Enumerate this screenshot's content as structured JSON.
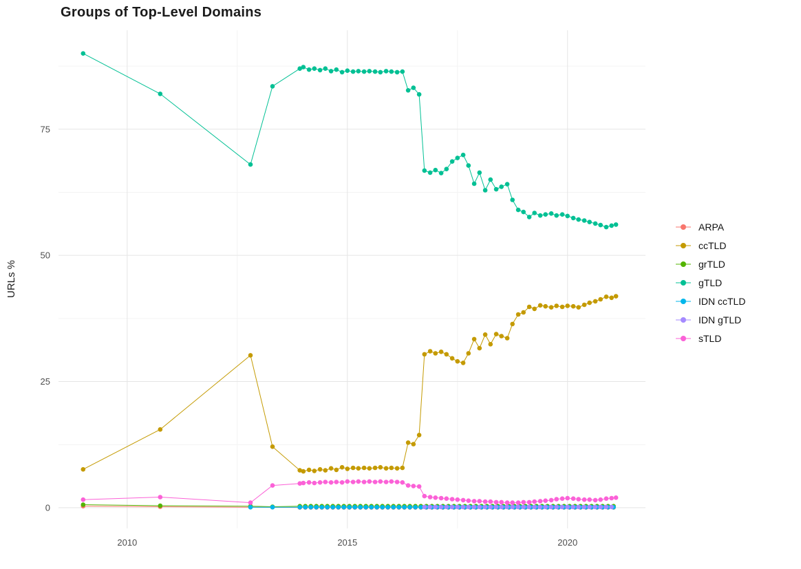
{
  "chart_data": {
    "type": "line",
    "title": "Groups of Top-Level Domains",
    "xlabel": "",
    "ylabel": "URLs %",
    "x_ticks": [
      2010,
      2015,
      2020
    ],
    "y_ticks": [
      0,
      25,
      50,
      75
    ],
    "x_minor": [
      2012.5,
      2017.5
    ],
    "y_minor": [
      12.5,
      37.5,
      62.5,
      87.5
    ],
    "x_range": [
      2008.44,
      2021.77
    ],
    "y_range": [
      -4.1,
      94.6
    ],
    "grid": true,
    "legend_position": "right",
    "series": [
      {
        "name": "ARPA",
        "color": "#F8766D",
        "data": [
          [
            2009.0,
            0.3
          ],
          [
            2010.75,
            0.2
          ],
          [
            2012.8,
            0.1
          ],
          [
            2013.3,
            0.1
          ],
          {
            "from": 2013.92,
            "to": 2021.1,
            "step": 0.125,
            "y": 0.05
          }
        ]
      },
      {
        "name": "ccTLD",
        "color": "#C49A00",
        "data": [
          [
            2009.0,
            7.6
          ],
          [
            2010.75,
            15.5
          ],
          [
            2012.8,
            30.2
          ],
          [
            2013.3,
            12.1
          ],
          [
            2013.92,
            7.4
          ],
          [
            2014.0,
            7.2
          ],
          [
            2014.13,
            7.5
          ],
          [
            2014.25,
            7.3
          ],
          [
            2014.38,
            7.6
          ],
          [
            2014.5,
            7.4
          ],
          [
            2014.63,
            7.8
          ],
          [
            2014.75,
            7.5
          ],
          [
            2014.88,
            8.0
          ],
          [
            2015.0,
            7.7
          ],
          [
            2015.13,
            7.9
          ],
          [
            2015.25,
            7.8
          ],
          [
            2015.38,
            7.9
          ],
          [
            2015.5,
            7.8
          ],
          [
            2015.63,
            7.9
          ],
          [
            2015.75,
            8.0
          ],
          [
            2015.88,
            7.8
          ],
          [
            2016.0,
            7.9
          ],
          [
            2016.13,
            7.8
          ],
          [
            2016.25,
            7.9
          ],
          [
            2016.38,
            12.9
          ],
          [
            2016.5,
            12.6
          ],
          [
            2016.63,
            14.4
          ],
          [
            2016.75,
            30.4
          ],
          [
            2016.88,
            31.0
          ],
          [
            2017.0,
            30.6
          ],
          [
            2017.13,
            30.9
          ],
          [
            2017.25,
            30.4
          ],
          [
            2017.38,
            29.6
          ],
          [
            2017.5,
            29.0
          ],
          [
            2017.63,
            28.7
          ],
          [
            2017.75,
            30.6
          ],
          [
            2017.88,
            33.4
          ],
          [
            2018.0,
            31.6
          ],
          [
            2018.13,
            34.3
          ],
          [
            2018.25,
            32.4
          ],
          [
            2018.38,
            34.4
          ],
          [
            2018.5,
            34.0
          ],
          [
            2018.63,
            33.6
          ],
          [
            2018.75,
            36.4
          ],
          [
            2018.88,
            38.3
          ],
          [
            2019.0,
            38.7
          ],
          [
            2019.13,
            39.8
          ],
          [
            2019.25,
            39.4
          ],
          [
            2019.38,
            40.1
          ],
          [
            2019.5,
            39.9
          ],
          [
            2019.63,
            39.7
          ],
          [
            2019.75,
            40.0
          ],
          [
            2019.88,
            39.8
          ],
          [
            2020.0,
            40.0
          ],
          [
            2020.13,
            39.9
          ],
          [
            2020.25,
            39.7
          ],
          [
            2020.38,
            40.2
          ],
          [
            2020.5,
            40.6
          ],
          [
            2020.63,
            40.9
          ],
          [
            2020.75,
            41.3
          ],
          [
            2020.88,
            41.8
          ],
          [
            2021.0,
            41.6
          ],
          [
            2021.1,
            41.9
          ]
        ]
      },
      {
        "name": "grTLD",
        "color": "#53B400",
        "data": [
          [
            2009.0,
            0.6
          ],
          [
            2010.75,
            0.4
          ],
          [
            2012.8,
            0.3
          ],
          [
            2013.3,
            0.2
          ],
          {
            "from": 2013.92,
            "to": 2021.1,
            "step": 0.125,
            "y": 0.3
          }
        ]
      },
      {
        "name": "gTLD",
        "color": "#00C094",
        "data": [
          [
            2009.0,
            90.0
          ],
          [
            2010.75,
            82.0
          ],
          [
            2012.8,
            68.0
          ],
          [
            2013.3,
            83.5
          ],
          [
            2013.92,
            87.0
          ],
          [
            2014.0,
            87.3
          ],
          [
            2014.13,
            86.8
          ],
          [
            2014.25,
            87.0
          ],
          [
            2014.38,
            86.7
          ],
          [
            2014.5,
            87.0
          ],
          [
            2014.63,
            86.5
          ],
          [
            2014.75,
            86.8
          ],
          [
            2014.88,
            86.3
          ],
          [
            2015.0,
            86.6
          ],
          [
            2015.13,
            86.4
          ],
          [
            2015.25,
            86.5
          ],
          [
            2015.38,
            86.4
          ],
          [
            2015.5,
            86.5
          ],
          [
            2015.63,
            86.4
          ],
          [
            2015.75,
            86.3
          ],
          [
            2015.88,
            86.5
          ],
          [
            2016.0,
            86.4
          ],
          [
            2016.13,
            86.3
          ],
          [
            2016.25,
            86.4
          ],
          [
            2016.38,
            82.7
          ],
          [
            2016.5,
            83.2
          ],
          [
            2016.63,
            81.9
          ],
          [
            2016.75,
            66.8
          ],
          [
            2016.88,
            66.4
          ],
          [
            2017.0,
            66.9
          ],
          [
            2017.13,
            66.3
          ],
          [
            2017.25,
            67.1
          ],
          [
            2017.38,
            68.6
          ],
          [
            2017.5,
            69.3
          ],
          [
            2017.63,
            69.9
          ],
          [
            2017.75,
            67.8
          ],
          [
            2017.88,
            64.2
          ],
          [
            2018.0,
            66.4
          ],
          [
            2018.13,
            62.9
          ],
          [
            2018.25,
            65.0
          ],
          [
            2018.38,
            63.1
          ],
          [
            2018.5,
            63.6
          ],
          [
            2018.63,
            64.1
          ],
          [
            2018.75,
            61.0
          ],
          [
            2018.88,
            59.0
          ],
          [
            2019.0,
            58.6
          ],
          [
            2019.13,
            57.6
          ],
          [
            2019.25,
            58.4
          ],
          [
            2019.38,
            57.9
          ],
          [
            2019.5,
            58.1
          ],
          [
            2019.63,
            58.3
          ],
          [
            2019.75,
            57.9
          ],
          [
            2019.88,
            58.1
          ],
          [
            2020.0,
            57.8
          ],
          [
            2020.13,
            57.4
          ],
          [
            2020.25,
            57.1
          ],
          [
            2020.38,
            56.9
          ],
          [
            2020.5,
            56.6
          ],
          [
            2020.63,
            56.3
          ],
          [
            2020.75,
            56.0
          ],
          [
            2020.88,
            55.6
          ],
          [
            2021.0,
            55.9
          ],
          [
            2021.1,
            56.1
          ]
        ]
      },
      {
        "name": "IDN ccTLD",
        "color": "#00B6EB",
        "data": [
          [
            2012.8,
            0.1
          ],
          [
            2013.3,
            0.1
          ],
          {
            "from": 2013.92,
            "to": 2021.1,
            "step": 0.125,
            "y": 0.1
          }
        ]
      },
      {
        "name": "IDN gTLD",
        "color": "#A58AFF",
        "data": [
          {
            "from": 2016.75,
            "to": 2021.1,
            "step": 0.125,
            "y": 0.15
          }
        ]
      },
      {
        "name": "sTLD",
        "color": "#FB61D7",
        "data": [
          [
            2009.0,
            1.6
          ],
          [
            2010.75,
            2.1
          ],
          [
            2012.8,
            1.0
          ],
          [
            2013.3,
            4.4
          ],
          [
            2013.92,
            4.8
          ],
          [
            2014.0,
            4.9
          ],
          [
            2014.13,
            5.0
          ],
          [
            2014.25,
            4.9
          ],
          [
            2014.38,
            5.0
          ],
          [
            2014.5,
            5.1
          ],
          [
            2014.63,
            5.0
          ],
          [
            2014.75,
            5.1
          ],
          [
            2014.88,
            5.0
          ],
          [
            2015.0,
            5.2
          ],
          [
            2015.13,
            5.1
          ],
          [
            2015.25,
            5.2
          ],
          [
            2015.38,
            5.1
          ],
          [
            2015.5,
            5.2
          ],
          [
            2015.63,
            5.1
          ],
          [
            2015.75,
            5.2
          ],
          [
            2015.88,
            5.1
          ],
          [
            2016.0,
            5.2
          ],
          [
            2016.13,
            5.1
          ],
          [
            2016.25,
            5.0
          ],
          [
            2016.38,
            4.4
          ],
          [
            2016.5,
            4.3
          ],
          [
            2016.63,
            4.2
          ],
          [
            2016.75,
            2.3
          ],
          [
            2016.88,
            2.1
          ],
          [
            2017.0,
            2.0
          ],
          [
            2017.13,
            1.9
          ],
          [
            2017.25,
            1.8
          ],
          [
            2017.38,
            1.7
          ],
          [
            2017.5,
            1.6
          ],
          [
            2017.63,
            1.5
          ],
          [
            2017.75,
            1.4
          ],
          [
            2017.88,
            1.3
          ],
          [
            2018.0,
            1.3
          ],
          [
            2018.13,
            1.2
          ],
          [
            2018.25,
            1.2
          ],
          [
            2018.38,
            1.1
          ],
          [
            2018.5,
            1.1
          ],
          [
            2018.63,
            1.0
          ],
          [
            2018.75,
            1.0
          ],
          [
            2018.88,
            1.0
          ],
          [
            2019.0,
            1.1
          ],
          [
            2019.13,
            1.1
          ],
          [
            2019.25,
            1.2
          ],
          [
            2019.38,
            1.3
          ],
          [
            2019.5,
            1.4
          ],
          [
            2019.63,
            1.5
          ],
          [
            2019.75,
            1.7
          ],
          [
            2019.88,
            1.8
          ],
          [
            2020.0,
            1.9
          ],
          [
            2020.13,
            1.8
          ],
          [
            2020.25,
            1.7
          ],
          [
            2020.38,
            1.6
          ],
          [
            2020.5,
            1.6
          ],
          [
            2020.63,
            1.5
          ],
          [
            2020.75,
            1.6
          ],
          [
            2020.88,
            1.8
          ],
          [
            2021.0,
            1.9
          ],
          [
            2021.1,
            2.0
          ]
        ]
      }
    ]
  }
}
